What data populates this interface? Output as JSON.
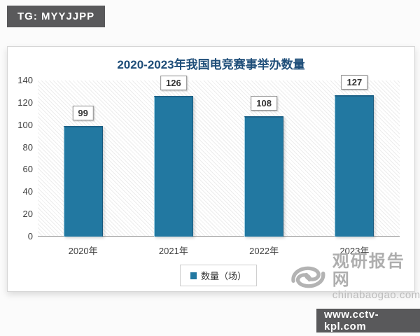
{
  "overlays": {
    "top_left_badge": "TG: MYYJJPP",
    "bottom_right_badge": "www.cctv-kpl.com"
  },
  "watermark": {
    "brand": "观研报告网",
    "domain": "chinabaogao.com"
  },
  "chart_data": {
    "type": "bar",
    "title": "2020-2023年我国电竞赛事举办数量",
    "categories": [
      "2020年",
      "2021年",
      "2022年",
      "2023年"
    ],
    "series": [
      {
        "name": "数量（场）",
        "values": [
          99,
          126,
          108,
          127
        ]
      }
    ],
    "legend": {
      "position": "bottom",
      "entries": [
        "数量（场）"
      ]
    },
    "ylabel": "",
    "xlabel": "",
    "ylim": [
      0,
      140
    ],
    "yticks": [
      0,
      20,
      40,
      60,
      80,
      100,
      120,
      140
    ],
    "grid": false,
    "value_labels": true,
    "colors": {
      "bar": "#2278a1",
      "title": "#1f4e79"
    }
  }
}
